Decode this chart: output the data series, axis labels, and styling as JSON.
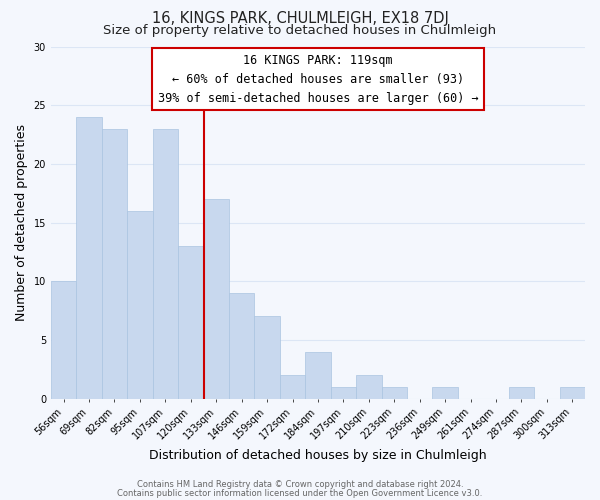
{
  "title": "16, KINGS PARK, CHULMLEIGH, EX18 7DJ",
  "subtitle": "Size of property relative to detached houses in Chulmleigh",
  "xlabel": "Distribution of detached houses by size in Chulmleigh",
  "ylabel": "Number of detached properties",
  "bar_color": "#c8d8ee",
  "bar_edge_color": "#aac4e0",
  "categories": [
    "56sqm",
    "69sqm",
    "82sqm",
    "95sqm",
    "107sqm",
    "120sqm",
    "133sqm",
    "146sqm",
    "159sqm",
    "172sqm",
    "184sqm",
    "197sqm",
    "210sqm",
    "223sqm",
    "236sqm",
    "249sqm",
    "261sqm",
    "274sqm",
    "287sqm",
    "300sqm",
    "313sqm"
  ],
  "values": [
    10,
    24,
    23,
    16,
    23,
    13,
    17,
    9,
    7,
    2,
    4,
    1,
    2,
    1,
    0,
    1,
    0,
    0,
    1,
    0,
    1
  ],
  "ylim": [
    0,
    30
  ],
  "yticks": [
    0,
    5,
    10,
    15,
    20,
    25,
    30
  ],
  "vline_color": "#cc0000",
  "vline_bar_index": 5,
  "annotation_title": "16 KINGS PARK: 119sqm",
  "annotation_line1": "← 60% of detached houses are smaller (93)",
  "annotation_line2": "39% of semi-detached houses are larger (60) →",
  "annotation_box_color": "#ffffff",
  "annotation_box_edge": "#cc0000",
  "footer1": "Contains HM Land Registry data © Crown copyright and database right 2024.",
  "footer2": "Contains public sector information licensed under the Open Government Licence v3.0.",
  "background_color": "#f4f7fd",
  "grid_color": "#dce6f5",
  "title_fontsize": 10.5,
  "subtitle_fontsize": 9.5,
  "axis_label_fontsize": 9,
  "tick_fontsize": 7,
  "footer_fontsize": 6,
  "annotation_fontsize": 8.5
}
